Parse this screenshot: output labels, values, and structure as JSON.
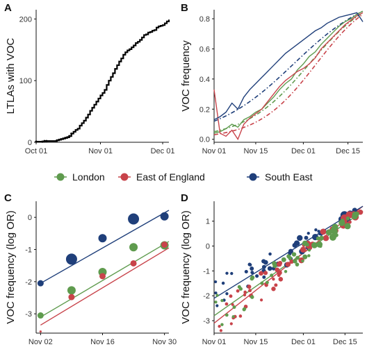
{
  "legend": [
    {
      "label": "London",
      "color": "#5f9b4e"
    },
    {
      "label": "East of England",
      "color": "#c8434a"
    },
    {
      "label": "South East",
      "color": "#1f3f7a"
    }
  ],
  "chart_data": [
    {
      "panel": "A",
      "type": "line",
      "step": true,
      "ylabel": "LTLAs with VOC",
      "xlim": [
        0,
        64
      ],
      "ylim": [
        0,
        215
      ],
      "xticks": [
        {
          "x": 0,
          "label": "Oct 01"
        },
        {
          "x": 31,
          "label": "Nov 01"
        },
        {
          "x": 61,
          "label": "Dec 01"
        }
      ],
      "yticks": [
        0,
        100,
        200
      ],
      "grid": false,
      "color": "#000000",
      "x": [
        0,
        3,
        4,
        5,
        10,
        11,
        12,
        13,
        14,
        15,
        16,
        17,
        18,
        19,
        20,
        21,
        22,
        23,
        24,
        25,
        26,
        27,
        28,
        29,
        30,
        31,
        32,
        33,
        34,
        35,
        36,
        37,
        38,
        39,
        40,
        41,
        42,
        43,
        44,
        45,
        46,
        47,
        48,
        49,
        50,
        51,
        52,
        53,
        54,
        55,
        56,
        57,
        58,
        59,
        60,
        61,
        62,
        63,
        64
      ],
      "y": [
        1,
        1,
        2,
        2,
        3,
        4,
        5,
        6,
        7,
        8,
        10,
        14,
        17,
        20,
        22,
        27,
        31,
        35,
        40,
        45,
        51,
        56,
        61,
        66,
        71,
        76,
        80,
        85,
        93,
        100,
        106,
        112,
        119,
        125,
        131,
        136,
        142,
        146,
        149,
        151,
        154,
        157,
        161,
        163,
        166,
        170,
        174,
        175,
        178,
        179,
        181,
        182,
        186,
        188,
        189,
        190,
        193,
        196,
        199
      ]
    },
    {
      "panel": "B",
      "type": "line",
      "ylabel": "VOC frequency",
      "xlim": [
        0,
        50
      ],
      "ylim": [
        -0.02,
        0.86
      ],
      "xticks": [
        {
          "x": 0,
          "label": "Nov 01"
        },
        {
          "x": 14,
          "label": "Nov 15"
        },
        {
          "x": 30,
          "label": "Dec 01"
        },
        {
          "x": 45,
          "label": "Dec 15"
        }
      ],
      "yticks": [
        0.0,
        0.2,
        0.4,
        0.6,
        0.8
      ],
      "grid": false,
      "x": [
        0,
        2,
        4,
        6,
        8,
        10,
        12,
        14,
        16,
        18,
        20,
        22,
        24,
        26,
        28,
        30,
        32,
        34,
        36,
        38,
        40,
        42,
        44,
        46,
        48,
        50
      ],
      "series": [
        {
          "name": "London",
          "color": "#5f9b4e",
          "values": [
            0.04,
            0.05,
            0.07,
            0.1,
            0.08,
            0.13,
            0.15,
            0.18,
            0.2,
            0.24,
            0.28,
            0.33,
            0.37,
            0.4,
            0.46,
            0.5,
            0.55,
            0.58,
            0.63,
            0.67,
            0.71,
            0.75,
            0.78,
            0.8,
            0.83,
            0.85
          ]
        },
        {
          "name": "East of England",
          "color": "#c8434a",
          "values": [
            0.33,
            0.04,
            0.02,
            0.06,
            0.0,
            0.1,
            0.14,
            0.17,
            0.2,
            0.25,
            0.3,
            0.35,
            0.39,
            0.42,
            0.45,
            0.47,
            0.5,
            0.54,
            0.6,
            0.64,
            0.68,
            0.72,
            0.76,
            0.79,
            0.82,
            0.84
          ]
        },
        {
          "name": "South East",
          "color": "#1f3f7a",
          "values": [
            0.13,
            0.15,
            0.18,
            0.24,
            0.2,
            0.28,
            0.33,
            0.37,
            0.41,
            0.45,
            0.49,
            0.53,
            0.57,
            0.6,
            0.63,
            0.66,
            0.69,
            0.72,
            0.74,
            0.77,
            0.79,
            0.81,
            0.82,
            0.83,
            0.84,
            0.78
          ]
        }
      ],
      "fits": [
        {
          "color": "#5f9b4e",
          "values_at": [
            0,
            50
          ],
          "curve": "logistic",
          "y_start": 0.05,
          "y_end": 0.84
        },
        {
          "color": "#c8434a",
          "values_at": [
            0,
            50
          ],
          "curve": "logistic",
          "y_start": 0.03,
          "y_end": 0.83
        },
        {
          "color": "#1f3f7a",
          "values_at": [
            0,
            50
          ],
          "curve": "logistic",
          "y_start": 0.12,
          "y_end": 0.85
        }
      ]
    },
    {
      "panel": "C",
      "type": "scatter",
      "ylabel": "VOC frequency (log OR)",
      "xlim": [
        0,
        30
      ],
      "ylim": [
        -3.6,
        0.5
      ],
      "xticks": [
        {
          "x": 1,
          "label": "Nov 02"
        },
        {
          "x": 15,
          "label": "Nov 16"
        },
        {
          "x": 29,
          "label": "Nov 30"
        }
      ],
      "yticks": [
        -3,
        -2,
        -1,
        0
      ],
      "grid": false,
      "series": [
        {
          "name": "London",
          "color": "#5f9b4e",
          "points": [
            [
              1,
              -3.05,
              1
            ],
            [
              8,
              -2.27,
              2
            ],
            [
              15,
              -1.7,
              2
            ],
            [
              22,
              -0.93,
              2
            ],
            [
              29,
              -0.87,
              2
            ]
          ],
          "fit": [
            [
              1,
              -3.1
            ],
            [
              30,
              -0.75
            ]
          ]
        },
        {
          "name": "East of England",
          "color": "#c8434a",
          "points": [
            [
              1,
              -3.55,
              0.5
            ],
            [
              8,
              -2.48,
              1
            ],
            [
              15,
              -1.83,
              1
            ],
            [
              22,
              -1.43,
              1
            ],
            [
              29,
              -0.85,
              1
            ]
          ],
          "fit": [
            [
              1,
              -3.35
            ],
            [
              30,
              -0.95
            ]
          ]
        },
        {
          "name": "South East",
          "color": "#1f3f7a",
          "points": [
            [
              1,
              -2.05,
              1
            ],
            [
              8,
              -1.3,
              3
            ],
            [
              15,
              -0.65,
              2
            ],
            [
              22,
              -0.05,
              3
            ],
            [
              29,
              0.03,
              2
            ]
          ],
          "fit": [
            [
              1,
              -2.05
            ],
            [
              30,
              0.22
            ]
          ]
        }
      ]
    },
    {
      "panel": "D",
      "type": "scatter",
      "ylabel": "VOC frequency (log OR)",
      "xlim": [
        0,
        50
      ],
      "ylim": [
        -3.5,
        1.8
      ],
      "xticks": [
        {
          "x": 0,
          "label": "Nov 01"
        },
        {
          "x": 14,
          "label": "Nov 15"
        },
        {
          "x": 30,
          "label": "Dec 01"
        },
        {
          "x": 44,
          "label": "Dec 15"
        }
      ],
      "yticks": [
        -3,
        -2,
        -1,
        0,
        1
      ],
      "grid": false,
      "series": [
        {
          "name": "London",
          "color": "#5f9b4e",
          "trend": {
            "x0": 0,
            "y0": -2.8,
            "x1": 50,
            "y1": 1.4
          },
          "fit": [
            [
              0,
              -2.8
            ],
            [
              50,
              1.4
            ]
          ]
        },
        {
          "name": "East of England",
          "color": "#c8434a",
          "trend": {
            "x0": 0,
            "y0": -3.1,
            "x1": 50,
            "y1": 1.55
          },
          "fit": [
            [
              0,
              -3.1
            ],
            [
              50,
              1.6
            ]
          ]
        },
        {
          "name": "South East",
          "color": "#1f3f7a",
          "trend": {
            "x0": 0,
            "y0": -2.1,
            "x1": 50,
            "y1": 1.55
          },
          "fit": [
            [
              0,
              -2.1
            ],
            [
              50,
              1.6
            ]
          ]
        }
      ]
    }
  ]
}
